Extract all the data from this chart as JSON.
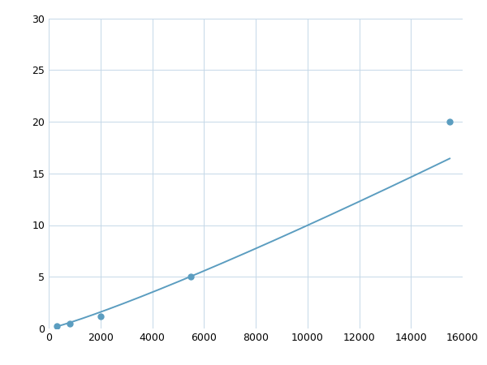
{
  "x_data": [
    300,
    800,
    2000,
    5500,
    15500
  ],
  "y_data": [
    0.25,
    0.45,
    1.2,
    5.0,
    20.0
  ],
  "line_color": "#5b9dc0",
  "marker_color": "#5b9dc0",
  "marker_size": 5,
  "line_width": 1.4,
  "xlim": [
    0,
    16000
  ],
  "ylim": [
    0,
    30
  ],
  "xticks": [
    0,
    2000,
    4000,
    6000,
    8000,
    10000,
    12000,
    14000,
    16000
  ],
  "yticks": [
    0,
    5,
    10,
    15,
    20,
    25,
    30
  ],
  "grid_color": "#c5d8e8",
  "background_color": "#ffffff",
  "figsize": [
    6.0,
    4.5
  ],
  "dpi": 100
}
